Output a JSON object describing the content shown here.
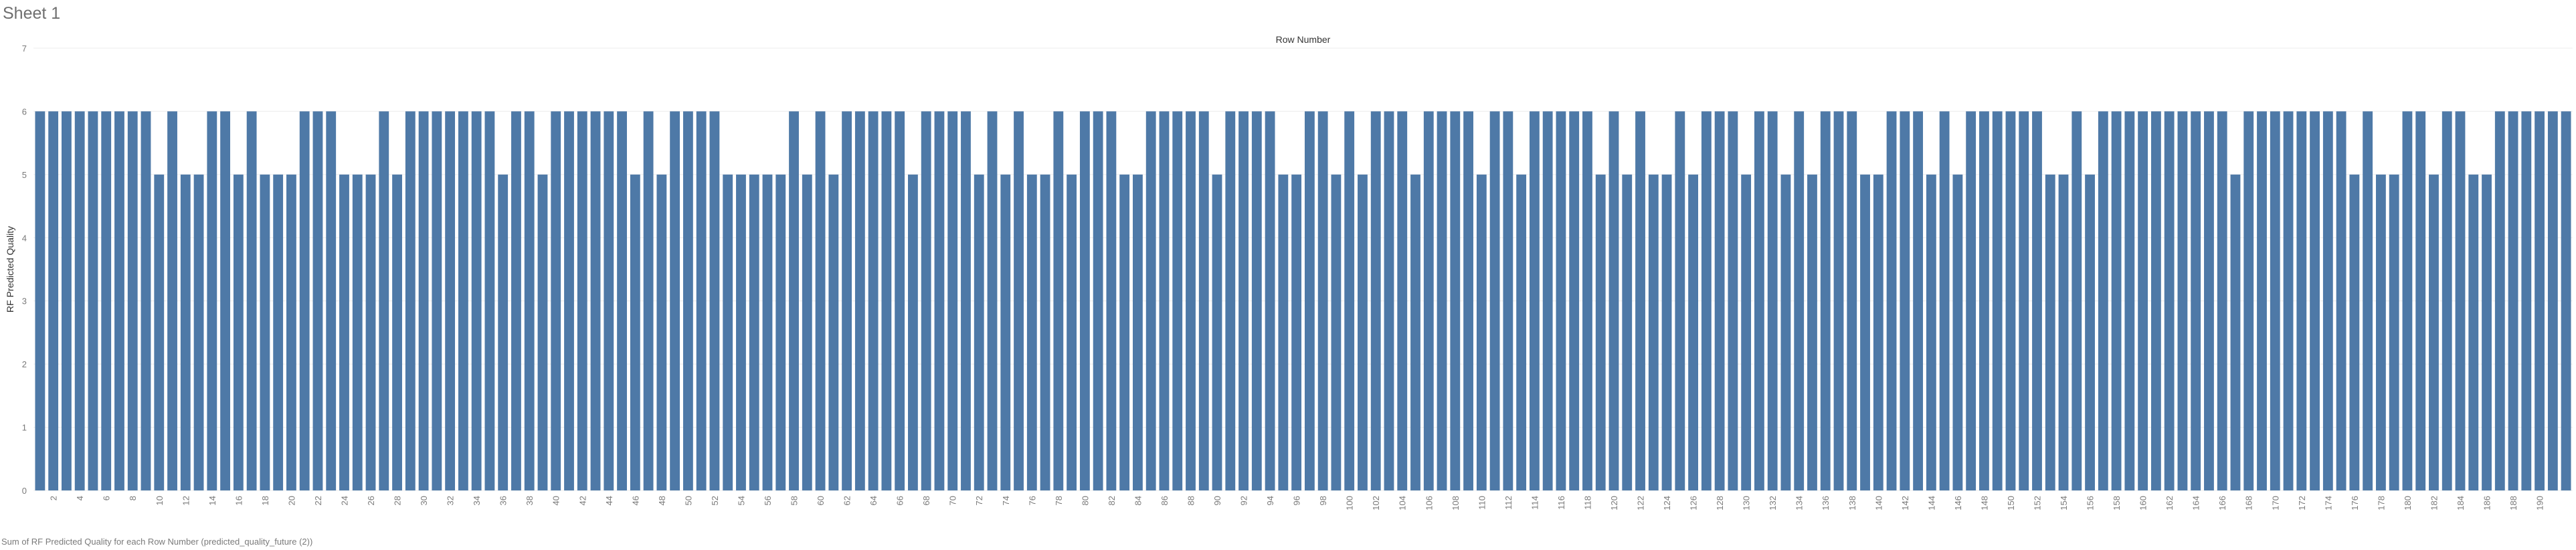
{
  "sheet": {
    "title": "Sheet 1",
    "caption": "Sum of RF Predicted Quality for each Row Number (predicted_quality_future (2))"
  },
  "chart_data": {
    "type": "bar",
    "title": "",
    "xlabel": "Row Number",
    "ylabel": "RF Predicted Quality",
    "ylim": [
      0,
      7
    ],
    "yticks": [
      0,
      1,
      2,
      3,
      4,
      5,
      6,
      7
    ],
    "grid": true,
    "bar_color": "#4e79a7",
    "x": [
      1,
      2,
      3,
      4,
      5,
      6,
      7,
      8,
      9,
      10,
      11,
      12,
      13,
      14,
      15,
      16,
      17,
      18,
      19,
      20,
      21,
      22,
      23,
      24,
      25,
      26,
      27,
      28,
      29,
      30,
      31,
      32,
      33,
      34,
      35,
      36,
      37,
      38,
      39,
      40,
      41,
      42,
      43,
      44,
      45,
      46,
      47,
      48,
      49,
      50,
      51,
      52,
      53,
      54,
      55,
      56,
      57,
      58,
      59,
      60,
      61,
      62,
      63,
      64,
      65,
      66,
      67,
      68,
      69,
      70,
      71,
      72,
      73,
      74,
      75,
      76,
      77,
      78,
      79,
      80,
      81,
      82,
      83,
      84,
      85,
      86,
      87,
      88,
      89,
      90,
      91,
      92,
      93,
      94,
      95,
      96,
      97,
      98,
      99,
      100,
      101,
      102,
      103,
      104,
      105,
      106,
      107,
      108,
      109,
      110,
      111,
      112,
      113,
      114,
      115,
      116,
      117,
      118,
      119,
      120,
      121,
      122,
      123,
      124,
      125,
      126,
      127,
      128,
      129,
      130,
      131,
      132,
      133,
      134,
      135,
      136,
      137,
      138,
      139,
      140,
      141,
      142,
      143,
      144,
      145,
      146,
      147,
      148,
      149,
      150,
      151,
      152,
      153,
      154,
      155,
      156,
      157,
      158,
      159,
      160,
      161,
      162,
      163,
      164,
      165,
      166,
      167,
      168,
      169,
      170,
      171,
      172,
      173,
      174,
      175,
      176,
      177,
      178,
      179,
      180,
      181,
      182,
      183,
      184,
      185,
      186,
      187,
      188,
      189,
      190,
      191,
      192
    ],
    "values": [
      6,
      6,
      6,
      6,
      6,
      6,
      6,
      6,
      6,
      5,
      6,
      5,
      5,
      6,
      6,
      5,
      6,
      5,
      5,
      5,
      6,
      6,
      6,
      5,
      5,
      5,
      6,
      5,
      6,
      6,
      6,
      6,
      6,
      6,
      6,
      5,
      6,
      6,
      5,
      6,
      6,
      6,
      6,
      6,
      6,
      5,
      6,
      5,
      6,
      6,
      6,
      6,
      5,
      5,
      5,
      5,
      5,
      6,
      5,
      6,
      5,
      6,
      6,
      6,
      6,
      6,
      5,
      6,
      6,
      6,
      6,
      5,
      6,
      5,
      6,
      5,
      5,
      6,
      5,
      6,
      6,
      6,
      5,
      5,
      6,
      6,
      6,
      6,
      6,
      5,
      6,
      6,
      6,
      6,
      5,
      5,
      6,
      6,
      5,
      6,
      5,
      6,
      6,
      6,
      5,
      6,
      6,
      6,
      6,
      5,
      6,
      6,
      5,
      6,
      6,
      6,
      6,
      6,
      5,
      6,
      5,
      6,
      5,
      5,
      6,
      5,
      6,
      6,
      6,
      5,
      6,
      6,
      5,
      6,
      5,
      6,
      6,
      6,
      5,
      5,
      6,
      6,
      6,
      5,
      6,
      5,
      6,
      6,
      6,
      6,
      6,
      6,
      5,
      5,
      6,
      5,
      6,
      6,
      6,
      6,
      6,
      6,
      6,
      6,
      6,
      6,
      5,
      6,
      6,
      6,
      6,
      6,
      6,
      6,
      6,
      5,
      6,
      5,
      5,
      6,
      6,
      5,
      6,
      6,
      5,
      5,
      6,
      6,
      6,
      6,
      6,
      6
    ],
    "xticks": [
      2,
      4,
      6,
      8,
      10,
      12,
      14,
      16,
      18,
      20,
      22,
      24,
      26,
      28,
      30,
      32,
      34,
      36,
      38,
      40,
      42,
      44,
      46,
      48,
      50,
      52,
      54,
      56,
      58,
      60,
      62,
      64,
      66,
      68,
      70,
      72,
      74,
      76,
      78,
      80,
      82,
      84,
      86,
      88,
      90,
      92,
      94,
      96,
      98,
      100,
      102,
      104,
      106,
      108,
      110,
      112,
      114,
      116,
      118,
      120,
      122,
      124,
      126,
      128,
      130,
      132,
      134,
      136,
      138,
      140,
      142,
      144,
      146,
      148,
      150,
      152,
      154,
      156,
      158,
      160,
      162,
      164,
      166,
      168,
      170,
      172,
      174,
      176,
      178,
      180,
      182,
      184,
      186,
      188,
      190
    ]
  }
}
